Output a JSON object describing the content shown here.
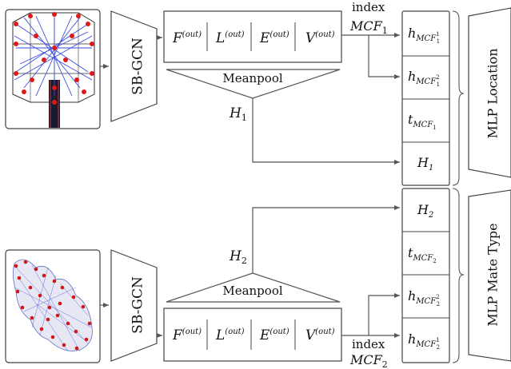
{
  "top": {
    "gcn_label": "SB-GCN",
    "features": [
      {
        "base": "F",
        "sup": "(out)"
      },
      {
        "base": "L",
        "sup": "(out)"
      },
      {
        "base": "E",
        "sup": "(out)"
      },
      {
        "base": "V",
        "sup": "(out)"
      }
    ],
    "pool_label": "Meanpool",
    "h_label": {
      "base": "H",
      "sub": "1"
    },
    "index_label": "index",
    "index_mcf": {
      "base": "MCF",
      "sub": "1"
    }
  },
  "bottom": {
    "gcn_label": "SB-GCN",
    "features": [
      {
        "base": "F",
        "sup": "(out)"
      },
      {
        "base": "L",
        "sup": "(out)"
      },
      {
        "base": "E",
        "sup": "(out)"
      },
      {
        "base": "V",
        "sup": "(out)"
      }
    ],
    "pool_label": "Meanpool",
    "h_label": {
      "base": "H",
      "sub": "2"
    },
    "index_label": "index",
    "index_mcf": {
      "base": "MCF",
      "sub": "2"
    }
  },
  "concat_column": {
    "cells": [
      {
        "base": "h",
        "sub": "MCF",
        "subsub": "1",
        "subsup": "1"
      },
      {
        "base": "h",
        "sub": "MCF",
        "subsub": "1",
        "subsup": "2"
      },
      {
        "base": "t",
        "sub": "MCF",
        "subsub": "1",
        "subsup": ""
      },
      {
        "base": "H",
        "sub": "1",
        "subsub": "",
        "subsup": ""
      },
      {
        "base": "H",
        "sub": "2",
        "subsub": "",
        "subsup": ""
      },
      {
        "base": "t",
        "sub": "MCF",
        "subsub": "2",
        "subsup": ""
      },
      {
        "base": "h",
        "sub": "MCF",
        "subsub": "2",
        "subsup": "2"
      },
      {
        "base": "h",
        "sub": "MCF",
        "subsub": "2",
        "subsup": "1"
      }
    ]
  },
  "mlp_location_label": "MLP Location",
  "mlp_mate_type_label": "MLP Mate Type"
}
